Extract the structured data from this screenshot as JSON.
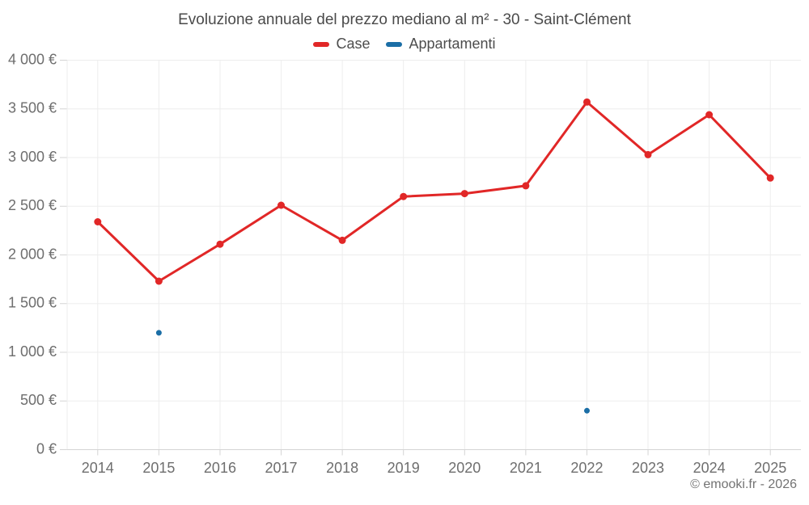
{
  "header": {
    "title": "Evoluzione annuale del prezzo mediano al m² - 30 - Saint-Clément"
  },
  "legend": {
    "items": [
      {
        "label": "Case",
        "color": "#e12727"
      },
      {
        "label": "Appartamenti",
        "color": "#1b6ea6"
      }
    ]
  },
  "footer": {
    "copyright": "© emooki.fr - 2026"
  },
  "chart_data": {
    "type": "line",
    "title": "Evoluzione annuale del prezzo mediano al m² - 30 - Saint-Clément",
    "categories": [
      "2014",
      "2015",
      "2016",
      "2017",
      "2018",
      "2019",
      "2020",
      "2021",
      "2022",
      "2023",
      "2024",
      "2025"
    ],
    "series": [
      {
        "name": "Case",
        "color": "#e12727",
        "style": "line+markers",
        "values": [
          2340,
          1730,
          2110,
          2510,
          2150,
          2600,
          2630,
          2710,
          3570,
          3030,
          3440,
          2790
        ]
      },
      {
        "name": "Appartamenti",
        "color": "#1b6ea6",
        "style": "markers",
        "values": [
          null,
          1200,
          null,
          null,
          null,
          null,
          null,
          null,
          400,
          null,
          null,
          null
        ]
      }
    ],
    "xlabel": "",
    "ylabel": "",
    "ylim": [
      0,
      4000
    ],
    "ytick_step": 500,
    "ytick_labels": [
      "0 €",
      "500 €",
      "1 000 €",
      "1 500 €",
      "2 000 €",
      "2 500 €",
      "3 000 €",
      "3 500 €",
      "4 000 €"
    ],
    "grid": true,
    "legend_position": "top",
    "currency": "€"
  }
}
